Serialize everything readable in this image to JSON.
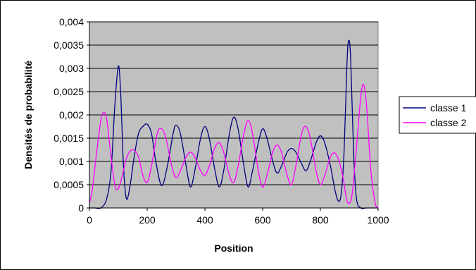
{
  "chart_data": {
    "type": "line",
    "title": "",
    "xlabel": "Position",
    "ylabel": "Densités de probabilité",
    "xlim": [
      0,
      1000
    ],
    "ylim": [
      0,
      0.004
    ],
    "xticks": [
      0,
      200,
      400,
      600,
      800,
      1000
    ],
    "xtick_labels": [
      "0",
      "200",
      "400",
      "600",
      "800",
      "1000"
    ],
    "yticks": [
      0,
      0.0005,
      0.001,
      0.0015,
      0.002,
      0.0025,
      0.003,
      0.0035,
      0.004
    ],
    "ytick_labels": [
      "0",
      "0,0005",
      "0,001",
      "0,0015",
      "0,002",
      "0,0025",
      "0,003",
      "0,0035",
      "0,004"
    ],
    "grid": "horizontal",
    "plot_background": "#c0c0c0",
    "legend_position": "right",
    "series": [
      {
        "name": "classe 1",
        "color": "#000080",
        "points": [
          [
            0,
            0
          ],
          [
            20,
            0
          ],
          [
            40,
            0
          ],
          [
            60,
            0.0002
          ],
          [
            75,
            0.0008
          ],
          [
            88,
            0.0022
          ],
          [
            100,
            0.00305
          ],
          [
            108,
            0.0025
          ],
          [
            118,
            0.0009
          ],
          [
            128,
            0.0002
          ],
          [
            140,
            0.00045
          ],
          [
            155,
            0.0011
          ],
          [
            170,
            0.0016
          ],
          [
            185,
            0.00175
          ],
          [
            200,
            0.0018
          ],
          [
            215,
            0.0016
          ],
          [
            230,
            0.001
          ],
          [
            250,
            0.00048
          ],
          [
            270,
            0.0009
          ],
          [
            290,
            0.0016
          ],
          [
            300,
            0.00178
          ],
          [
            315,
            0.0016
          ],
          [
            335,
            0.0009
          ],
          [
            350,
            0.00045
          ],
          [
            365,
            0.0008
          ],
          [
            385,
            0.0015
          ],
          [
            400,
            0.00175
          ],
          [
            415,
            0.0015
          ],
          [
            435,
            0.0008
          ],
          [
            450,
            0.00045
          ],
          [
            465,
            0.0008
          ],
          [
            485,
            0.0016
          ],
          [
            500,
            0.00195
          ],
          [
            515,
            0.0017
          ],
          [
            535,
            0.0009
          ],
          [
            550,
            0.00045
          ],
          [
            565,
            0.0008
          ],
          [
            585,
            0.0014
          ],
          [
            600,
            0.0017
          ],
          [
            615,
            0.0015
          ],
          [
            635,
            0.001
          ],
          [
            650,
            0.00075
          ],
          [
            665,
            0.0009
          ],
          [
            685,
            0.0012
          ],
          [
            700,
            0.00128
          ],
          [
            715,
            0.0012
          ],
          [
            735,
            0.00095
          ],
          [
            750,
            0.0008
          ],
          [
            765,
            0.001
          ],
          [
            785,
            0.0014
          ],
          [
            800,
            0.00155
          ],
          [
            815,
            0.0014
          ],
          [
            835,
            0.0009
          ],
          [
            850,
            0.0004
          ],
          [
            862,
            0.00015
          ],
          [
            872,
            0.0003
          ],
          [
            882,
            0.0012
          ],
          [
            892,
            0.0031
          ],
          [
            898,
            0.0036
          ],
          [
            905,
            0.0032
          ],
          [
            915,
            0.0012
          ],
          [
            925,
            0.0002
          ],
          [
            940,
            0
          ],
          [
            960,
            0
          ],
          [
            1000,
            0
          ]
        ]
      },
      {
        "name": "classe 2",
        "color": "#ff00ff",
        "points": [
          [
            0,
            0.0001
          ],
          [
            10,
            0.0004
          ],
          [
            25,
            0.0012
          ],
          [
            40,
            0.0019
          ],
          [
            50,
            0.00205
          ],
          [
            60,
            0.0019
          ],
          [
            75,
            0.0011
          ],
          [
            88,
            0.0005
          ],
          [
            98,
            0.0004
          ],
          [
            110,
            0.0006
          ],
          [
            130,
            0.0011
          ],
          [
            150,
            0.00125
          ],
          [
            170,
            0.0011
          ],
          [
            185,
            0.0007
          ],
          [
            200,
            0.00055
          ],
          [
            215,
            0.0009
          ],
          [
            235,
            0.0016
          ],
          [
            250,
            0.0017
          ],
          [
            265,
            0.0015
          ],
          [
            285,
            0.0009
          ],
          [
            300,
            0.00065
          ],
          [
            315,
            0.0008
          ],
          [
            335,
            0.0011
          ],
          [
            350,
            0.0012
          ],
          [
            365,
            0.0011
          ],
          [
            385,
            0.0008
          ],
          [
            400,
            0.0007
          ],
          [
            415,
            0.0009
          ],
          [
            435,
            0.0013
          ],
          [
            450,
            0.0014
          ],
          [
            465,
            0.0012
          ],
          [
            485,
            0.0007
          ],
          [
            500,
            0.00055
          ],
          [
            515,
            0.0009
          ],
          [
            535,
            0.0016
          ],
          [
            550,
            0.00188
          ],
          [
            565,
            0.0016
          ],
          [
            585,
            0.0008
          ],
          [
            600,
            0.00045
          ],
          [
            615,
            0.0007
          ],
          [
            635,
            0.0012
          ],
          [
            650,
            0.00135
          ],
          [
            665,
            0.0012
          ],
          [
            685,
            0.0007
          ],
          [
            700,
            0.0005
          ],
          [
            715,
            0.0009
          ],
          [
            735,
            0.0016
          ],
          [
            750,
            0.00175
          ],
          [
            765,
            0.0015
          ],
          [
            785,
            0.0008
          ],
          [
            800,
            0.0005
          ],
          [
            815,
            0.0007
          ],
          [
            835,
            0.0011
          ],
          [
            850,
            0.00118
          ],
          [
            865,
            0.001
          ],
          [
            880,
            0.0006
          ],
          [
            890,
            0.0002
          ],
          [
            900,
            0.0001
          ],
          [
            910,
            0.0003
          ],
          [
            925,
            0.0013
          ],
          [
            940,
            0.0024
          ],
          [
            950,
            0.00265
          ],
          [
            960,
            0.0022
          ],
          [
            975,
            0.0008
          ],
          [
            990,
            0.0001
          ],
          [
            1000,
            0
          ]
        ]
      }
    ]
  }
}
